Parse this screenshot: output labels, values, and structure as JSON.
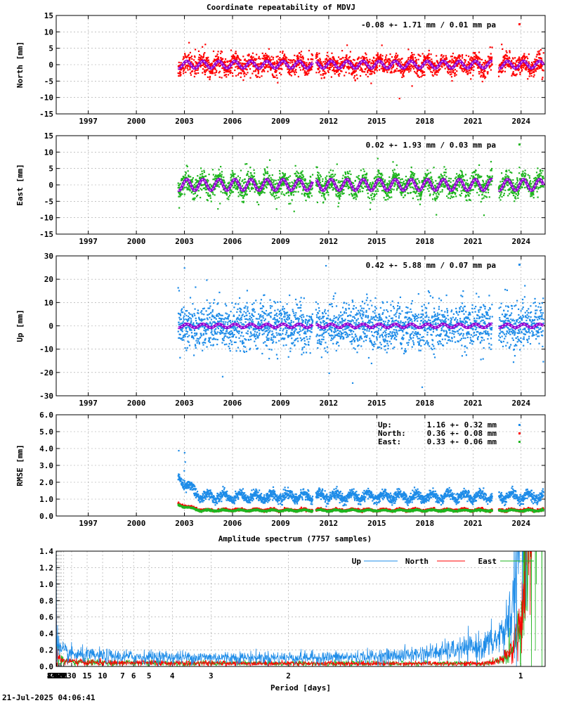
{
  "title": "Coordinate repeatability of MDVJ",
  "timestamp": "21-Jul-2025 04:06:41",
  "colors": {
    "north": "#ff0000",
    "east": "#1fb51f",
    "up": "#1e8ce8",
    "model": "#9400d3",
    "model_core": "#ffffff"
  },
  "chart_data": [
    {
      "type": "scatter",
      "id": "north",
      "ylabel": "North [mm]",
      "ylim": [
        -15,
        15
      ],
      "yticks": [
        -15,
        -10,
        -5,
        0,
        5,
        10,
        15
      ],
      "xlim": [
        1995.0,
        2025.5
      ],
      "xticks": [
        1997,
        2000,
        2003,
        2006,
        2009,
        2012,
        2015,
        2018,
        2021,
        2024
      ],
      "data_range": [
        2002.6,
        2025.4
      ],
      "gaps": [
        [
          2011.0,
          2011.2
        ],
        [
          2022.2,
          2022.6
        ]
      ],
      "annual_amplitude": 1.1,
      "spread": 1.71,
      "stat": "-0.08 +- 1.71 mm /  0.01 mm pa",
      "grid": true
    },
    {
      "type": "scatter",
      "id": "east",
      "ylabel": "East [mm]",
      "ylim": [
        -15,
        15
      ],
      "yticks": [
        -15,
        -10,
        -5,
        0,
        5,
        10,
        15
      ],
      "xlim": [
        1995.0,
        2025.5
      ],
      "xticks": [
        1997,
        2000,
        2003,
        2006,
        2009,
        2012,
        2015,
        2018,
        2021,
        2024
      ],
      "data_range": [
        2002.6,
        2025.4
      ],
      "gaps": [
        [
          2011.0,
          2011.2
        ],
        [
          2022.2,
          2022.6
        ]
      ],
      "annual_amplitude": 1.7,
      "spread": 1.93,
      "stat": "0.02 +- 1.93 mm /  0.03 mm pa",
      "grid": true
    },
    {
      "type": "scatter",
      "id": "up",
      "ylabel": "Up [mm]",
      "ylim": [
        -30,
        30
      ],
      "yticks": [
        -30,
        -20,
        -10,
        0,
        10,
        20,
        30
      ],
      "xlim": [
        1995.0,
        2025.5
      ],
      "xticks": [
        1997,
        2000,
        2003,
        2006,
        2009,
        2012,
        2015,
        2018,
        2021,
        2024
      ],
      "data_range": [
        2002.6,
        2025.4
      ],
      "gaps": [
        [
          2011.0,
          2011.2
        ],
        [
          2022.2,
          2022.6
        ]
      ],
      "annual_amplitude": 0.8,
      "spread": 5.88,
      "stat": "0.42 +- 5.88 mm /  0.07 mm pa",
      "grid": true
    },
    {
      "type": "scatter",
      "id": "rmse",
      "ylabel": "RMSE [mm]",
      "ylim": [
        0.0,
        6.0
      ],
      "yticks": [
        0.0,
        1.0,
        2.0,
        3.0,
        4.0,
        5.0,
        6.0
      ],
      "xlim": [
        1995.0,
        2025.5
      ],
      "xticks": [
        1997,
        2000,
        2003,
        2006,
        2009,
        2012,
        2015,
        2018,
        2021,
        2024
      ],
      "data_range": [
        2002.6,
        2025.4
      ],
      "gaps": [
        [
          2011.0,
          2011.2
        ],
        [
          2022.2,
          2022.6
        ]
      ],
      "legend": [
        {
          "label": "Up:",
          "value": "1.16 +- 0.32 mm",
          "mean": 1.16,
          "sd": 0.32
        },
        {
          "label": "North:",
          "value": "0.36 +- 0.08 mm",
          "mean": 0.36,
          "sd": 0.08
        },
        {
          "label": "East:",
          "value": "0.33 +- 0.06 mm",
          "mean": 0.33,
          "sd": 0.06
        }
      ],
      "grid": true
    },
    {
      "type": "line",
      "id": "spectrum",
      "title": "Amplitude spectrum (7757 samples)",
      "xlabel": "Period [days]",
      "xscale": "reciprocal",
      "xlim": [
        0.95,
        8760
      ],
      "ylim": [
        0.0,
        1.4
      ],
      "yticks": [
        0.0,
        0.2,
        0.4,
        0.6,
        0.8,
        1.0,
        1.2,
        1.4
      ],
      "xticks": [
        1,
        2,
        3,
        4,
        5,
        6,
        7,
        10,
        15,
        30,
        61,
        91,
        122,
        183,
        365,
        730,
        2190,
        4380,
        8760
      ],
      "series": [
        {
          "name": "Up"
        },
        {
          "name": "North"
        },
        {
          "name": "East"
        }
      ],
      "grid": true
    }
  ]
}
